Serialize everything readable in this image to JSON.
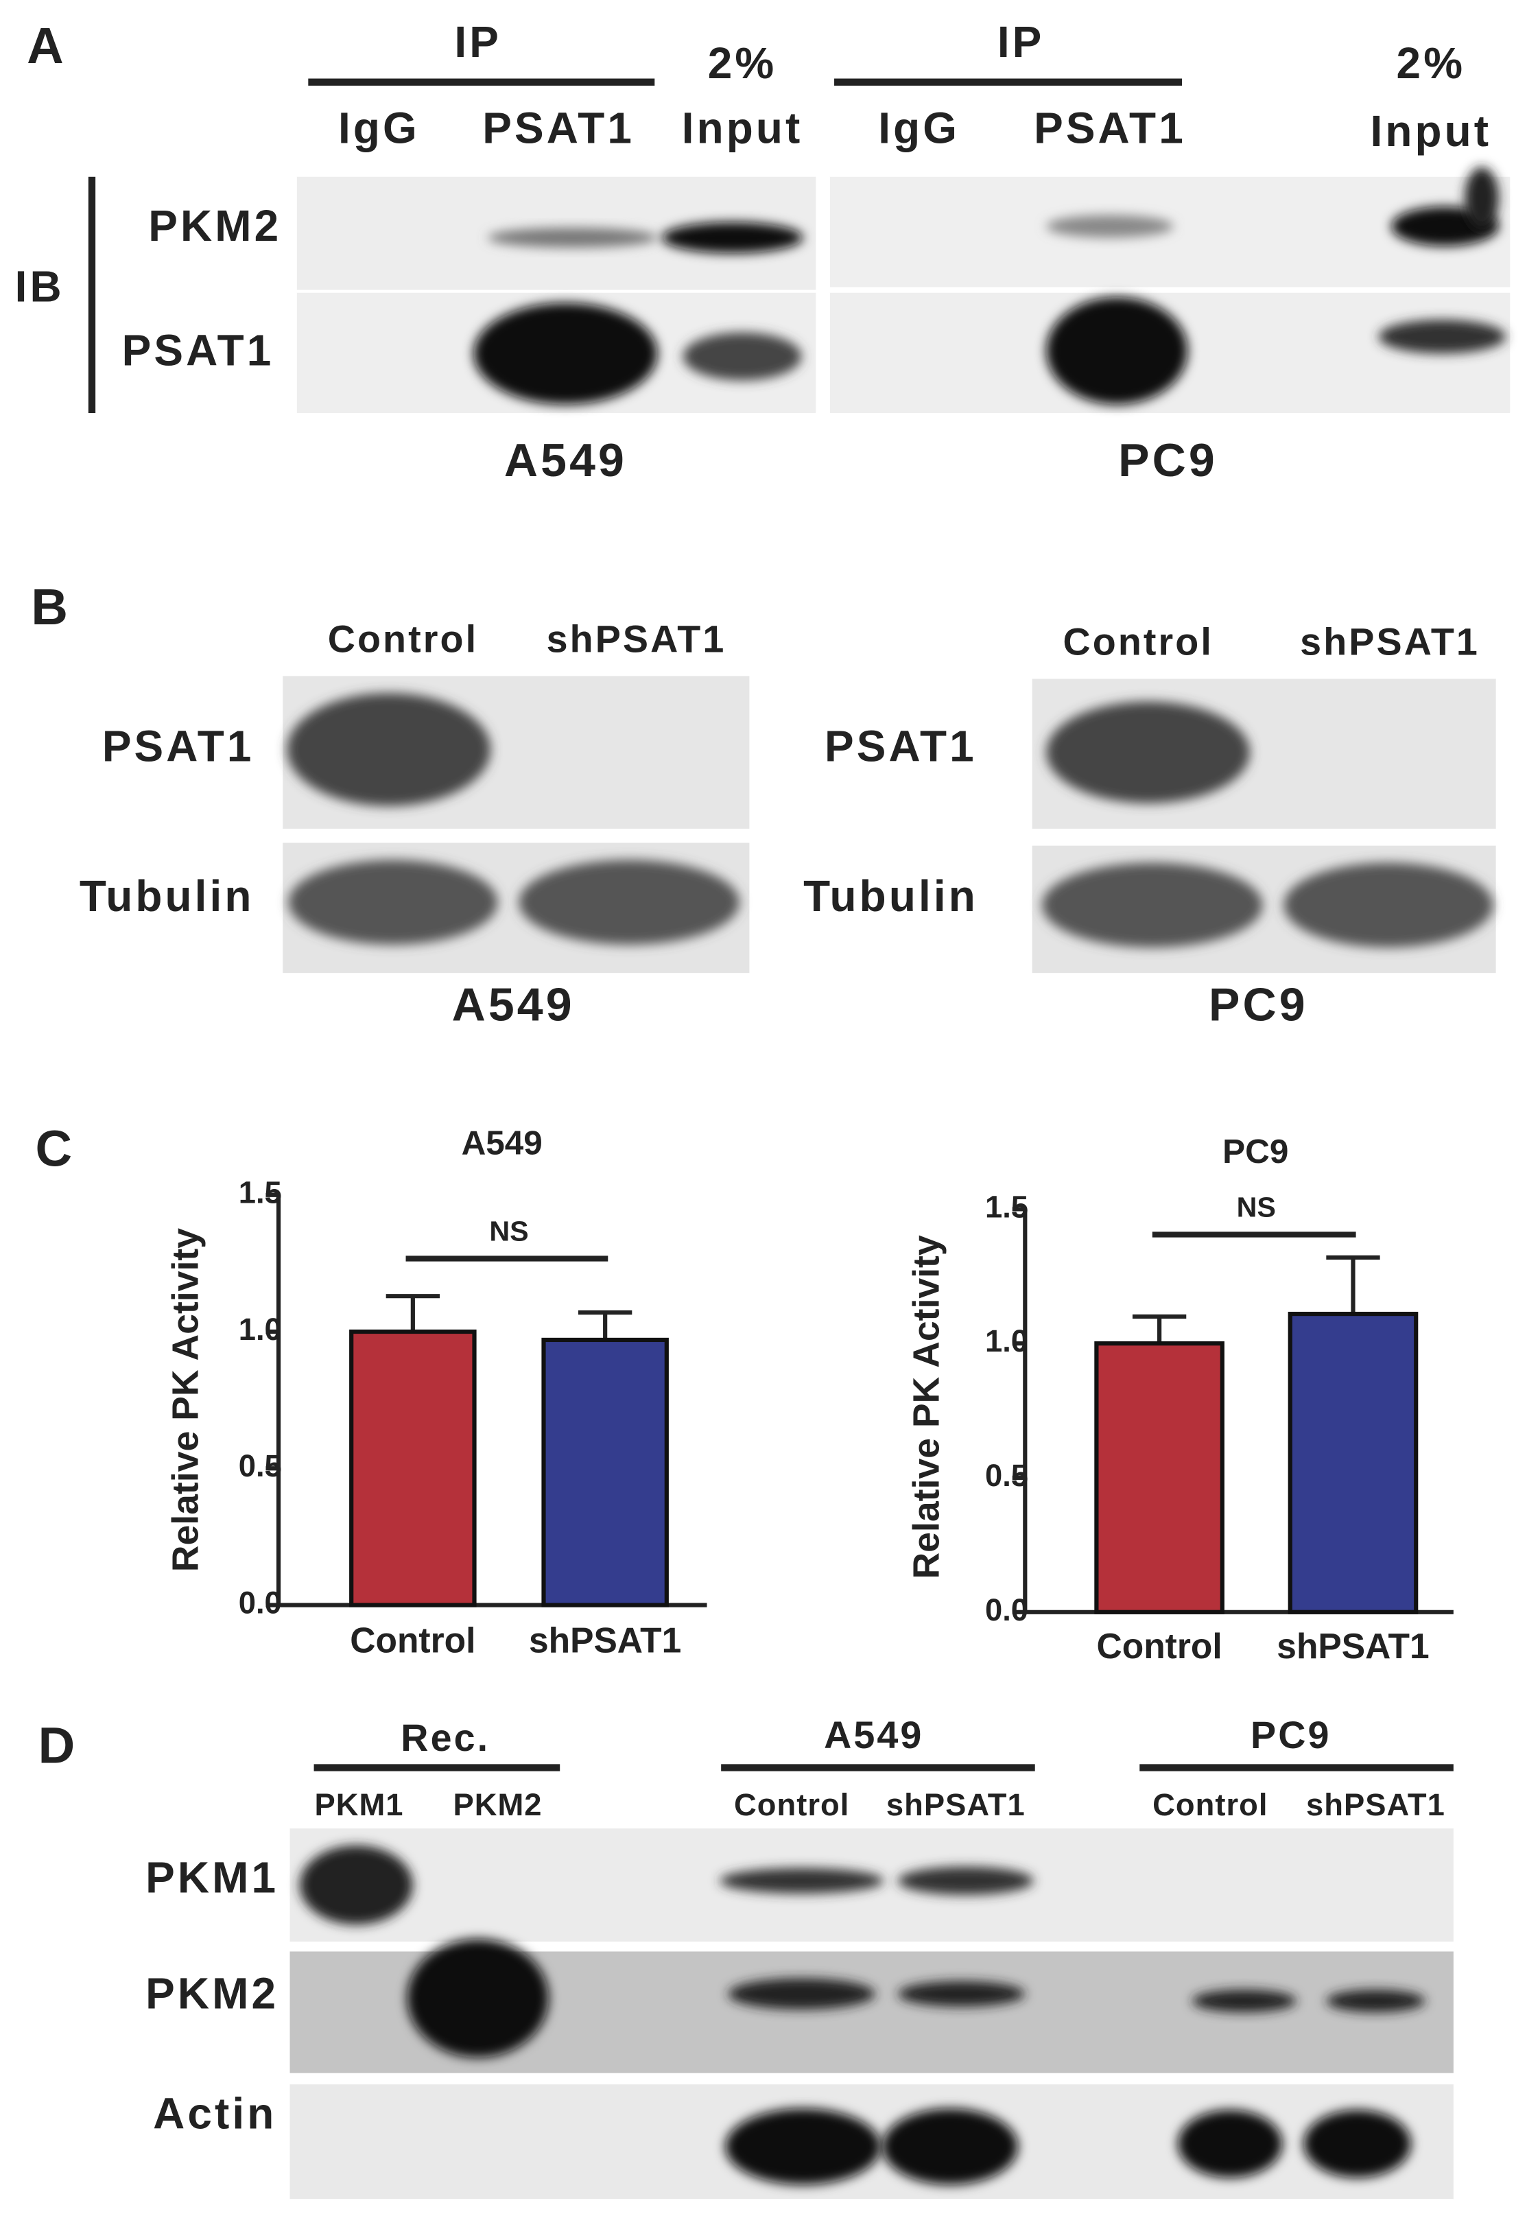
{
  "panel_a": {
    "label": "A",
    "ib": "IB",
    "rows": [
      "PKM2",
      "PSAT1"
    ],
    "blots": [
      {
        "ip": "IP",
        "lanes": [
          "IgG",
          "PSAT1"
        ],
        "input": [
          "2%",
          "Input"
        ],
        "cell_line": "A549"
      },
      {
        "ip": "IP",
        "lanes": [
          "IgG",
          "PSAT1"
        ],
        "input": [
          "2%",
          "Input"
        ],
        "cell_line": "PC9"
      }
    ]
  },
  "panel_b": {
    "label": "B",
    "blots": [
      {
        "lanes": [
          "Control",
          "shPSAT1"
        ],
        "rows": [
          "PSAT1",
          "Tubulin"
        ],
        "cell_line": "A549"
      },
      {
        "lanes": [
          "Control",
          "shPSAT1"
        ],
        "rows": [
          "PSAT1",
          "Tubulin"
        ],
        "cell_line": "PC9"
      }
    ]
  },
  "panel_c": {
    "label": "C"
  },
  "chart_data": [
    {
      "type": "bar",
      "title": "A549",
      "y_label": "Relative PK Activity",
      "categories": [
        "Control",
        "shPSAT1"
      ],
      "values": [
        1.0,
        0.97
      ],
      "errors": [
        0.13,
        0.1
      ],
      "colors": [
        "#b5313a",
        "#343d8e"
      ],
      "ylim": [
        0,
        1.5
      ],
      "yticks": [
        {
          "value": 0,
          "label": "0.0"
        },
        0.5,
        {
          "value": 1,
          "label": "1.0"
        },
        1.5
      ],
      "annotation": "NS"
    },
    {
      "type": "bar",
      "title": "PC9",
      "y_label": "Relative PK Activity",
      "categories": [
        "Control",
        "shPSAT1"
      ],
      "values": [
        1.0,
        1.11
      ],
      "errors": [
        0.1,
        0.21
      ],
      "colors": [
        "#b5313a",
        "#343d8e"
      ],
      "ylim": [
        0,
        1.5
      ],
      "yticks": [
        {
          "value": 0,
          "label": "0.0"
        },
        0.5,
        {
          "value": 1,
          "label": "1.0"
        },
        1.5
      ],
      "annotation": "NS"
    }
  ],
  "panel_d": {
    "label": "D",
    "rows": [
      "PKM1",
      "PKM2",
      "Actin"
    ],
    "groups": [
      {
        "name": "Rec.",
        "lanes": [
          "PKM1",
          "PKM2"
        ]
      },
      {
        "name": "A549",
        "lanes": [
          "Control",
          "shPSAT1"
        ]
      },
      {
        "name": "PC9",
        "lanes": [
          "Control",
          "shPSAT1"
        ]
      }
    ]
  }
}
